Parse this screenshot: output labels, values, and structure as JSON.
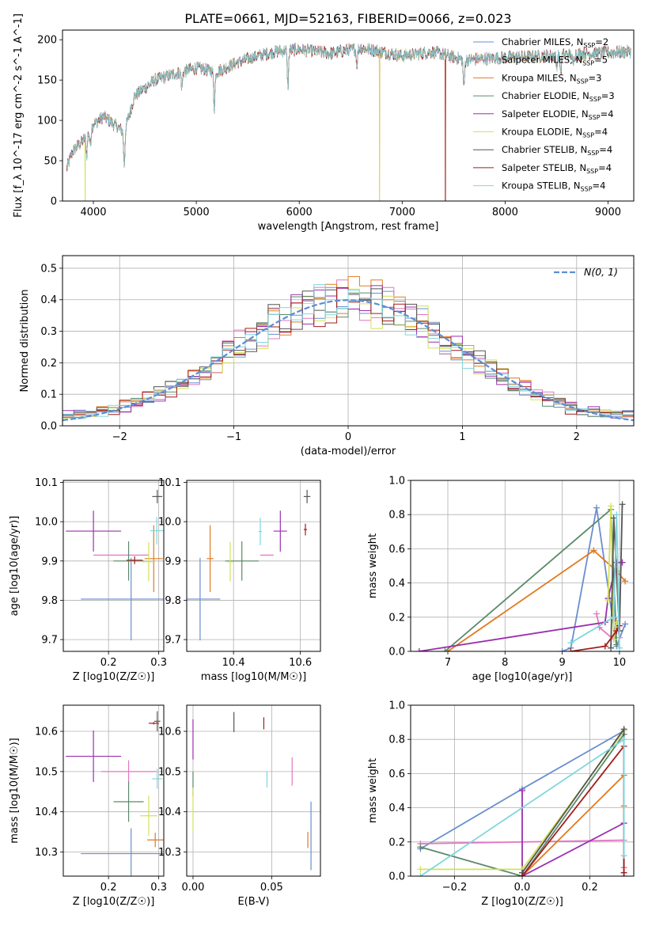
{
  "title": "PLATE=0661, MJD=52163, FIBERID=0066, z=0.023",
  "model_colors": [
    "#6a8ecf",
    "#e377c2",
    "#e07b1f",
    "#5a8a6a",
    "#9b2fae",
    "#d4e157",
    "#555555",
    "#a51c1c",
    "#7fd7de"
  ],
  "model_names": [
    "Chabrier MILES",
    "Salpeter MILES",
    "Kroupa MILES",
    "Chabrier ELODIE",
    "Salpeter ELODIE",
    "Kroupa ELODIE",
    "Chabrier STELIB",
    "Salpeter STELIB",
    "Kroupa STELIB"
  ],
  "chart_data": [
    {
      "id": "spectrum",
      "type": "line",
      "xlabel": "wavelength [Angstrom, rest frame]",
      "ylabel": "Flux [f_λ 10^-17 erg cm^-2 s^-1 A^-1]",
      "xlim": [
        3700,
        9250
      ],
      "ylim": [
        0,
        212
      ],
      "xticks": [
        "4000",
        "5000",
        "6000",
        "7000",
        "8000",
        "9000"
      ],
      "yticks": [
        "0",
        "50",
        "100",
        "150",
        "200"
      ],
      "legend": [
        {
          "label": "Chabrier MILES, N",
          "nssp": "=2"
        },
        {
          "label": "Salpeter MILES, N",
          "nssp": "=5"
        },
        {
          "label": "Kroupa MILES, N",
          "nssp": "=3"
        },
        {
          "label": "Chabrier ELODIE, N",
          "nssp": "=3"
        },
        {
          "label": "Salpeter ELODIE, N",
          "nssp": "=4"
        },
        {
          "label": "Kroupa ELODIE, N",
          "nssp": "=4"
        },
        {
          "label": "Chabrier STELIB, N",
          "nssp": "=4"
        },
        {
          "label": "Salpeter STELIB, N",
          "nssp": "=4"
        },
        {
          "label": "Kroupa STELIB, N",
          "nssp": "=4"
        }
      ],
      "legend_sub": "SSP",
      "legend_position": "right",
      "continuum": [
        [
          3740,
          40
        ],
        [
          3800,
          62
        ],
        [
          3900,
          75
        ],
        [
          4000,
          95
        ],
        [
          4100,
          105
        ],
        [
          4300,
          85
        ],
        [
          4400,
          130
        ],
        [
          4600,
          150
        ],
        [
          4800,
          158
        ],
        [
          5000,
          165
        ],
        [
          5200,
          160
        ],
        [
          5400,
          172
        ],
        [
          5600,
          180
        ],
        [
          5800,
          186
        ],
        [
          6000,
          188
        ],
        [
          6300,
          183
        ],
        [
          6600,
          190
        ],
        [
          7000,
          180
        ],
        [
          7300,
          185
        ],
        [
          7600,
          175
        ],
        [
          8000,
          178
        ],
        [
          8400,
          180
        ],
        [
          8800,
          183
        ],
        [
          9200,
          185
        ]
      ],
      "absorption_features": [
        [
          3935,
          25
        ],
        [
          3970,
          20
        ],
        [
          4300,
          40
        ],
        [
          4860,
          20
        ],
        [
          5175,
          45
        ],
        [
          5890,
          45
        ],
        [
          6560,
          20
        ],
        [
          7600,
          35
        ],
        [
          8500,
          15
        ],
        [
          8540,
          20
        ],
        [
          8660,
          15
        ]
      ],
      "dropouts": [
        {
          "x": 3920,
          "model": 5
        },
        {
          "x": 6780,
          "model": 2
        },
        {
          "x": 7420,
          "model": 2
        }
      ]
    },
    {
      "id": "residuals",
      "type": "bar",
      "xlabel": "(data-model)/error",
      "ylabel": "Normed distribution",
      "xlim": [
        -2.5,
        2.5
      ],
      "ylim": [
        0,
        0.54
      ],
      "xticks": [
        "−2",
        "−1",
        "0",
        "1",
        "2"
      ],
      "yticks": [
        "0.0",
        "0.1",
        "0.2",
        "0.3",
        "0.4",
        "0.5"
      ],
      "legend": "N(0, 1)",
      "legend_position": "top-right",
      "bin_width": 0.1
    },
    {
      "id": "age-vs-Z",
      "type": "scatter",
      "xlabel": "Z [log10(Z/Z☉)]",
      "ylabel": "age  [log10(age/yr)]",
      "xlim": [
        0.11,
        0.31
      ],
      "ylim": [
        9.67,
        10.105
      ],
      "xticks": [
        "0.2",
        "0.3"
      ],
      "yticks": [
        "9.7",
        "9.8",
        "9.9",
        "10.0",
        "10.1"
      ],
      "points": [
        {
          "model": 0,
          "x": 0.245,
          "y": 9.803,
          "dx": 0.1,
          "dy": 0.105
        },
        {
          "model": 1,
          "x": 0.225,
          "y": 9.915,
          "dx": 0.055,
          "dy": 0.0
        },
        {
          "model": 2,
          "x": 0.29,
          "y": 9.906,
          "dx": 0.018,
          "dy": 0.085
        },
        {
          "model": 3,
          "x": 0.24,
          "y": 9.9,
          "dx": 0.03,
          "dy": 0.05
        },
        {
          "model": 4,
          "x": 0.17,
          "y": 9.976,
          "dx": 0.055,
          "dy": 0.052
        },
        {
          "model": 5,
          "x": 0.28,
          "y": 9.898,
          "dx": 0.013,
          "dy": 0.05
        },
        {
          "model": 6,
          "x": 0.297,
          "y": 10.064,
          "dx": 0.01,
          "dy": 0.017
        },
        {
          "model": 7,
          "x": 0.252,
          "y": 9.902,
          "dx": 0.016,
          "dy": 0.01
        },
        {
          "model": 8,
          "x": 0.296,
          "y": 9.977,
          "dx": 0.013,
          "dy": 0.035
        }
      ]
    },
    {
      "id": "age-vs-mass",
      "type": "scatter",
      "xlabel": "mass [log10(M/M☉)]",
      "ylabel": "",
      "xlim": [
        10.26,
        10.66
      ],
      "ylim": [
        9.67,
        10.105
      ],
      "xticks": [
        "10.4",
        "10.6"
      ],
      "yticks": [
        "9.7",
        "9.8",
        "9.9",
        "10.0",
        "10.1"
      ],
      "points": [
        {
          "model": 0,
          "x": 10.3,
          "y": 9.803,
          "dx": 0.06,
          "dy": 0.105
        },
        {
          "model": 1,
          "x": 10.5,
          "y": 9.915,
          "dx": 0.02,
          "dy": 0.0
        },
        {
          "model": 2,
          "x": 10.33,
          "y": 9.906,
          "dx": 0.01,
          "dy": 0.085
        },
        {
          "model": 3,
          "x": 10.425,
          "y": 9.9,
          "dx": 0.05,
          "dy": 0.05
        },
        {
          "model": 4,
          "x": 10.54,
          "y": 9.976,
          "dx": 0.02,
          "dy": 0.052
        },
        {
          "model": 5,
          "x": 10.39,
          "y": 9.898,
          "dx": 0.01,
          "dy": 0.05
        },
        {
          "model": 6,
          "x": 10.62,
          "y": 10.064,
          "dx": 0.01,
          "dy": 0.017
        },
        {
          "model": 7,
          "x": 10.615,
          "y": 9.98,
          "dx": 0.005,
          "dy": 0.015
        },
        {
          "model": 8,
          "x": 10.48,
          "y": 9.975,
          "dx": 0.005,
          "dy": 0.035
        }
      ]
    },
    {
      "id": "weight-vs-age",
      "type": "line",
      "xlabel": "age  [log10(age/yr)]",
      "ylabel": "mass weight",
      "xlim": [
        6.35,
        10.25
      ],
      "ylim": [
        0,
        1.0
      ],
      "xticks": [
        "7",
        "8",
        "9",
        "10"
      ],
      "yticks": [
        "0.0",
        "0.2",
        "0.4",
        "0.6",
        "0.8",
        "1.0"
      ],
      "series": [
        {
          "model": 0,
          "points": [
            [
              9.0,
              0.0
            ],
            [
              9.15,
              0.02
            ],
            [
              9.6,
              0.84
            ],
            [
              9.95,
              0.03
            ],
            [
              10.1,
              0.16
            ]
          ]
        },
        {
          "model": 1,
          "points": [
            [
              9.6,
              0.22
            ],
            [
              9.65,
              0.14
            ],
            [
              9.9,
              0.07
            ],
            [
              9.95,
              0.18
            ],
            [
              10.0,
              0.08
            ]
          ]
        },
        {
          "model": 2,
          "points": [
            [
              7.0,
              0.0
            ],
            [
              9.55,
              0.59
            ],
            [
              9.95,
              0.47
            ],
            [
              10.1,
              0.41
            ]
          ]
        },
        {
          "model": 3,
          "points": [
            [
              6.95,
              0.0
            ],
            [
              9.85,
              0.83
            ],
            [
              9.95,
              0.04
            ]
          ]
        },
        {
          "model": 4,
          "points": [
            [
              6.5,
              0.0
            ],
            [
              9.75,
              0.17
            ],
            [
              9.8,
              0.31
            ],
            [
              9.95,
              0.52
            ],
            [
              10.05,
              0.52
            ]
          ]
        },
        {
          "model": 5,
          "points": [
            [
              9.8,
              0.3
            ],
            [
              9.85,
              0.85
            ],
            [
              9.9,
              0.07
            ],
            [
              9.95,
              0.17
            ]
          ]
        },
        {
          "model": 6,
          "points": [
            [
              9.85,
              0.02
            ],
            [
              9.9,
              0.78
            ],
            [
              10.0,
              0.12
            ],
            [
              10.05,
              0.86
            ]
          ]
        },
        {
          "model": 7,
          "points": [
            [
              9.15,
              0.0
            ],
            [
              9.75,
              0.03
            ],
            [
              9.95,
              0.12
            ],
            [
              10.0,
              0.15
            ]
          ]
        },
        {
          "model": 8,
          "points": [
            [
              9.15,
              0.05
            ],
            [
              9.9,
              0.2
            ],
            [
              9.95,
              0.8
            ],
            [
              10.0,
              0.02
            ]
          ]
        }
      ]
    },
    {
      "id": "mass-vs-Z",
      "type": "scatter",
      "xlabel": "Z [log10(Z/Z☉)]",
      "ylabel": "mass [log10(M/M☉)]",
      "xlim": [
        0.11,
        0.31
      ],
      "ylim": [
        10.24,
        10.665
      ],
      "xticks": [
        "0.2",
        "0.3"
      ],
      "yticks": [
        "10.3",
        "10.4",
        "10.5",
        "10.6"
      ],
      "points": [
        {
          "model": 0,
          "x": 0.245,
          "y": 10.296,
          "dx": 0.1,
          "dy": 0.063
        },
        {
          "model": 1,
          "x": 0.24,
          "y": 10.5,
          "dx": 0.055,
          "dy": 0.028
        },
        {
          "model": 2,
          "x": 0.293,
          "y": 10.33,
          "dx": 0.016,
          "dy": 0.018
        },
        {
          "model": 3,
          "x": 0.24,
          "y": 10.425,
          "dx": 0.03,
          "dy": 0.05
        },
        {
          "model": 4,
          "x": 0.17,
          "y": 10.538,
          "dx": 0.055,
          "dy": 0.064
        },
        {
          "model": 5,
          "x": 0.28,
          "y": 10.39,
          "dx": 0.017,
          "dy": 0.05
        },
        {
          "model": 6,
          "x": 0.297,
          "y": 10.625,
          "dx": 0.006,
          "dy": 0.025
        },
        {
          "model": 7,
          "x": 0.29,
          "y": 10.62,
          "dx": 0.01,
          "dy": 0.003
        },
        {
          "model": 8,
          "x": 0.297,
          "y": 10.482,
          "dx": 0.01,
          "dy": 0.025
        }
      ]
    },
    {
      "id": "mass-vs-EBV",
      "type": "scatter",
      "xlabel": "E(B-V)",
      "ylabel": "",
      "xlim": [
        -0.004,
        0.081
      ],
      "ylim": [
        10.24,
        10.665
      ],
      "xticks": [
        "0.00",
        "0.05"
      ],
      "yticks": [
        "10.3",
        "10.4",
        "10.5",
        "10.6"
      ],
      "points": [
        {
          "model": 0,
          "x": 0.075,
          "y": 10.34,
          "dx": 0.0,
          "dy": 0.085
        },
        {
          "model": 1,
          "x": 0.063,
          "y": 10.5,
          "dx": 0.0,
          "dy": 0.035
        },
        {
          "model": 2,
          "x": 0.073,
          "y": 10.33,
          "dx": 0.0,
          "dy": 0.02
        },
        {
          "model": 3,
          "x": 0.0,
          "y": 10.47,
          "dx": 0.0,
          "dy": 0.03
        },
        {
          "model": 4,
          "x": 0.0,
          "y": 10.58,
          "dx": 0.0,
          "dy": 0.05
        },
        {
          "model": 5,
          "x": 0.0,
          "y": 10.405,
          "dx": 0.0,
          "dy": 0.055
        },
        {
          "model": 6,
          "x": 0.026,
          "y": 10.623,
          "dx": 0.0,
          "dy": 0.025
        },
        {
          "model": 7,
          "x": 0.045,
          "y": 10.62,
          "dx": 0.0,
          "dy": 0.015
        },
        {
          "model": 8,
          "x": 0.047,
          "y": 10.48,
          "dx": 0.0,
          "dy": 0.02
        }
      ]
    },
    {
      "id": "weight-vs-Z",
      "type": "line",
      "xlabel": "Z [log10(Z/Z☉)]",
      "ylabel": "mass weight",
      "xlim": [
        -0.33,
        0.33
      ],
      "ylim": [
        0,
        1.0
      ],
      "xticks": [
        "−0.2",
        "0.0",
        "0.2"
      ],
      "yticks": [
        "0.0",
        "0.2",
        "0.4",
        "0.6",
        "0.8",
        "1.0"
      ],
      "series": [
        {
          "model": 0,
          "points": [
            [
              -0.301,
              0.16
            ],
            [
              0.0,
              0.51
            ],
            [
              0.301,
              0.85
            ]
          ]
        },
        {
          "model": 1,
          "points": [
            [
              -0.301,
              0.19
            ],
            [
              0.301,
              0.21
            ],
            [
              0.301,
              0.05
            ]
          ]
        },
        {
          "model": 2,
          "points": [
            [
              0.0,
              0.0
            ],
            [
              0.301,
              0.59
            ],
            [
              0.301,
              0.41
            ]
          ]
        },
        {
          "model": 3,
          "points": [
            [
              -0.301,
              0.17
            ],
            [
              0.0,
              0.0
            ],
            [
              0.301,
              0.83
            ]
          ]
        },
        {
          "model": 4,
          "points": [
            [
              0.0,
              0.5
            ],
            [
              0.0,
              0.0
            ],
            [
              0.301,
              0.31
            ]
          ]
        },
        {
          "model": 5,
          "points": [
            [
              -0.301,
              0.04
            ],
            [
              0.0,
              0.04
            ],
            [
              0.301,
              0.85
            ]
          ]
        },
        {
          "model": 6,
          "points": [
            [
              0.0,
              0.02
            ],
            [
              0.301,
              0.86
            ],
            [
              0.301,
              0.0
            ]
          ]
        },
        {
          "model": 7,
          "points": [
            [
              0.0,
              0.0
            ],
            [
              0.301,
              0.76
            ],
            [
              0.301,
              0.02
            ]
          ]
        },
        {
          "model": 8,
          "points": [
            [
              -0.301,
              0.0
            ],
            [
              0.301,
              0.8
            ],
            [
              0.301,
              0.12
            ]
          ]
        }
      ]
    }
  ]
}
